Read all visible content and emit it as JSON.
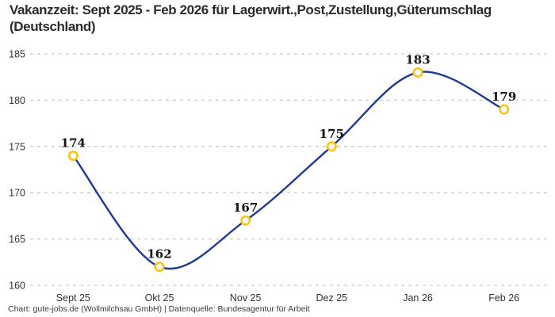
{
  "title": "Vakanzzeit: Sept 2025 - Feb 2026 für Lagerwirt.,Post,Zustellung,Güterumschlag (Deutschland)",
  "footer": "Chart: gute-jobs.de (Wollmilchsau GmbH) | Datenquelle: Bundesagentur für Arbeit",
  "colors": {
    "line": "#1e3a96",
    "marker_ring": "#fdc117",
    "marker_fill": "#ffffff",
    "grid": "#c9c9c9",
    "axis_text": "#333333",
    "point_label": "#141414",
    "title_text": "#2b2b2b",
    "background": "#ffffff"
  },
  "chart_data": {
    "type": "line",
    "title": "Vakanzzeit: Sept 2025 - Feb 2026 für Lagerwirt.,Post,Zustellung,Güterumschlag (Deutschland)",
    "categories": [
      "Sept 25",
      "Okt 25",
      "Nov 25",
      "Dez 25",
      "Jan 26",
      "Feb 26"
    ],
    "series": [
      {
        "name": "Vakanzzeit",
        "values": [
          174,
          162,
          167,
          175,
          183,
          179
        ]
      }
    ],
    "data_labels": [
      "174",
      "162",
      "167",
      "175",
      "183",
      "179"
    ],
    "xlabel": "",
    "ylabel": "",
    "ylim": [
      160,
      185
    ],
    "yticks": [
      185,
      180,
      175,
      170,
      165,
      160
    ],
    "grid": "horizontal-dashed",
    "legend": "none",
    "line_style": "smooth",
    "marker": "open-circle"
  }
}
